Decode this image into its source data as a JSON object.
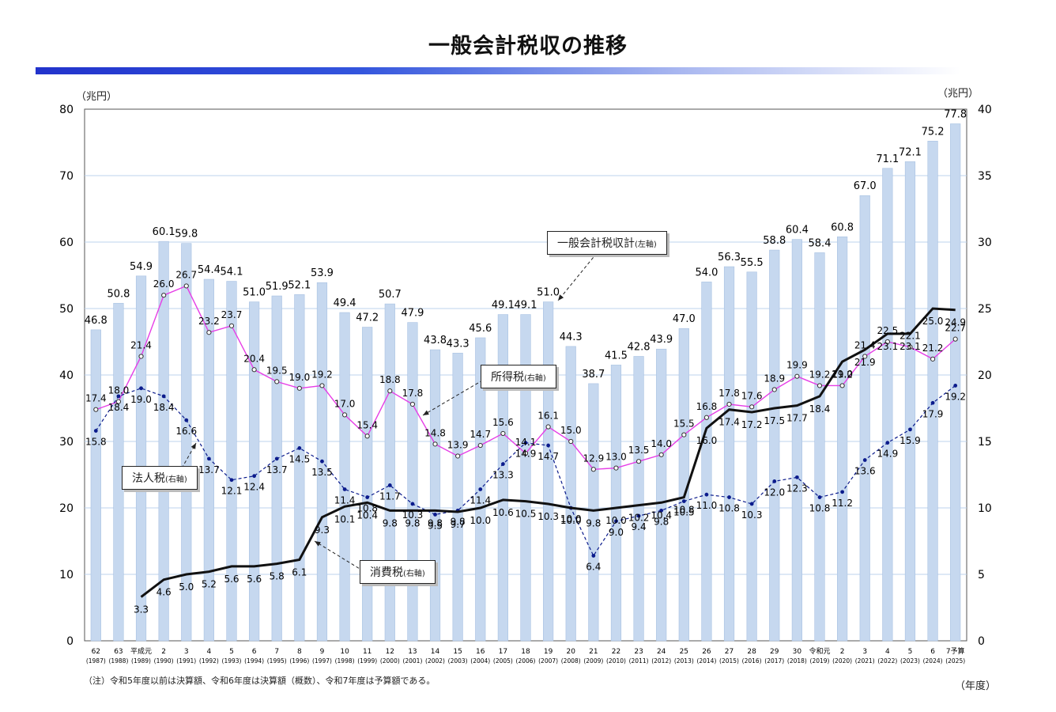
{
  "title": "一般会計税収の推移",
  "unit_left": "（兆円）",
  "unit_right": "（兆円）",
  "unit_x": "（年度）",
  "note": "（注）令和5年度以前は決算額、令和6年度は決算額（概数）、令和7年度は予算額である。",
  "callouts": {
    "general": {
      "main": "一般会計税収計",
      "sub": "(左軸)"
    },
    "income": {
      "main": "所得税",
      "sub": "(右軸)"
    },
    "corporate": {
      "main": "法人税",
      "sub": "(右軸)"
    },
    "consumption": {
      "main": "消費税",
      "sub": "(右軸)"
    }
  },
  "colors": {
    "bar": "#c6d8ef",
    "bar_edge": "#a9c2e2",
    "income": "#e63ee6",
    "corporate": "#0b1b8c",
    "consumption": "#111111",
    "title_bar": "#2233cc"
  },
  "chart_data": {
    "type": "bar",
    "categories": [
      "62",
      "63",
      "平成元",
      "2",
      "3",
      "4",
      "5",
      "6",
      "7",
      "8",
      "9",
      "10",
      "11",
      "12",
      "13",
      "14",
      "15",
      "16",
      "17",
      "18",
      "19",
      "20",
      "21",
      "22",
      "23",
      "24",
      "25",
      "26",
      "27",
      "28",
      "29",
      "30",
      "令和元",
      "2",
      "3",
      "4",
      "5",
      "6",
      "7予算"
    ],
    "category_years": [
      "(1987)",
      "(1988)",
      "(1989)",
      "(1990)",
      "(1991)",
      "(1992)",
      "(1993)",
      "(1994)",
      "(1995)",
      "(1996)",
      "(1997)",
      "(1998)",
      "(1999)",
      "(2000)",
      "(2001)",
      "(2002)",
      "(2003)",
      "(2004)",
      "(2005)",
      "(2006)",
      "(2007)",
      "(2008)",
      "(2009)",
      "(2010)",
      "(2011)",
      "(2012)",
      "(2013)",
      "(2014)",
      "(2015)",
      "(2016)",
      "(2017)",
      "(2018)",
      "(2019)",
      "(2020)",
      "(2021)",
      "(2022)",
      "(2023)",
      "(2024)",
      "(2025)"
    ],
    "y_left": {
      "min": 0,
      "max": 80,
      "ticks": [
        0,
        10,
        20,
        30,
        40,
        50,
        60,
        70,
        80
      ]
    },
    "y_right": {
      "min": 0,
      "max": 40,
      "ticks": [
        0,
        5,
        10,
        15,
        20,
        25,
        30,
        35,
        40
      ]
    },
    "grid": true,
    "series": [
      {
        "name": "一般会計税収計",
        "type": "bar",
        "axis": "left",
        "values": [
          46.8,
          50.8,
          54.9,
          60.1,
          59.8,
          54.4,
          54.1,
          51.0,
          51.9,
          52.1,
          53.9,
          49.4,
          47.2,
          50.7,
          47.9,
          43.8,
          43.3,
          45.6,
          49.1,
          49.1,
          51.0,
          44.3,
          38.7,
          41.5,
          42.8,
          43.9,
          47.0,
          54.0,
          56.3,
          55.5,
          58.8,
          60.4,
          58.4,
          60.8,
          67.0,
          71.1,
          72.1,
          75.2,
          77.8
        ]
      },
      {
        "name": "所得税",
        "type": "line",
        "axis": "right",
        "values": [
          17.4,
          18.0,
          21.4,
          26.0,
          26.7,
          23.2,
          23.7,
          20.4,
          19.5,
          19.0,
          19.2,
          17.0,
          15.4,
          18.8,
          17.8,
          14.8,
          13.9,
          14.7,
          15.6,
          14.1,
          16.1,
          15.0,
          12.9,
          13.0,
          13.5,
          14.0,
          15.5,
          16.8,
          17.8,
          17.6,
          18.9,
          19.9,
          19.2,
          19.2,
          21.4,
          22.5,
          22.1,
          21.2,
          22.7
        ]
      },
      {
        "name": "法人税",
        "type": "line",
        "axis": "right",
        "values": [
          15.8,
          18.4,
          19.0,
          18.4,
          16.6,
          13.7,
          12.1,
          12.4,
          13.7,
          14.5,
          13.5,
          11.4,
          10.8,
          11.7,
          10.3,
          9.5,
          9.8,
          11.4,
          13.3,
          14.9,
          14.7,
          10.0,
          6.4,
          9.0,
          9.4,
          9.8,
          10.5,
          11.0,
          10.8,
          10.3,
          12.0,
          12.3,
          10.8,
          11.2,
          13.6,
          14.9,
          15.9,
          17.9,
          19.2
        ]
      },
      {
        "name": "消費税",
        "type": "line",
        "axis": "right",
        "values": [
          null,
          null,
          3.3,
          4.6,
          5.0,
          5.2,
          5.6,
          5.6,
          5.8,
          6.1,
          9.3,
          10.1,
          10.4,
          9.8,
          9.8,
          9.8,
          9.7,
          10.0,
          10.6,
          10.5,
          10.3,
          10.0,
          9.8,
          10.0,
          10.2,
          10.4,
          10.8,
          16.0,
          17.4,
          17.2,
          17.5,
          17.7,
          18.4,
          21.0,
          21.9,
          23.1,
          23.1,
          25.0,
          24.9
        ]
      }
    ],
    "data_labels": {
      "bar": [
        "46.8",
        "50.8",
        "54.9",
        "60.1",
        "59.8",
        "54.4",
        "54.1",
        "51.0",
        "51.9",
        "52.1",
        "53.9",
        "49.4",
        "47.2",
        "50.7",
        "47.9",
        "43.8",
        "43.3",
        "45.6",
        "49.1",
        "49.1",
        "51.0",
        "44.3",
        "38.7",
        "41.5",
        "42.8",
        "43.9",
        "47.0",
        "54.0",
        "56.3",
        "55.5",
        "58.8",
        "60.4",
        "58.4",
        "60.8",
        "67.0",
        "71.1",
        "72.1",
        "75.2",
        "77.8"
      ],
      "income": [
        "17.4",
        "18.0",
        "21.4",
        "26.0",
        "26.7",
        "23.2",
        "23.7",
        "20.4",
        "19.5",
        "19.0",
        "19.2",
        "17.0",
        "15.4",
        "18.8",
        "17.8",
        "14.8",
        "13.9",
        "14.7",
        "15.6",
        "14.1",
        "16.1",
        "15.0",
        "12.9",
        "13.0",
        "13.5",
        "14.0",
        "15.5",
        "16.8",
        "17.8",
        "17.6",
        "18.9",
        "19.9",
        "19.2",
        "19.2",
        "21.4",
        "22.5",
        "22.1",
        "21.2",
        "22.7"
      ],
      "corporate": [
        "15.8",
        "18.4",
        "19.0",
        "18.4",
        "16.6",
        "13.7",
        "12.1",
        "12.4",
        "13.7",
        "14.5",
        "13.5",
        "11.4",
        "10.8",
        "11.7",
        "10.3",
        "9.5",
        "9.8",
        "11.4",
        "13.3",
        "14.9",
        "14.7",
        "10.0",
        "6.4",
        "9.0",
        "9.4",
        "9.8",
        "10.5",
        "11.0",
        "10.8",
        "10.3",
        "12.0",
        "12.3",
        "10.8",
        "11.2",
        "13.6",
        "14.9",
        "15.9",
        "17.9",
        "19.2"
      ],
      "consumption": [
        "",
        "",
        "3.3",
        "4.6",
        "5.0",
        "5.2",
        "5.6",
        "5.6",
        "5.8",
        "6.1",
        "9.3",
        "10.1",
        "10.4",
        "9.8",
        "9.8",
        "9.8",
        "9.7",
        "10.0",
        "10.6",
        "10.5",
        "10.3",
        "10.0",
        "9.8",
        "10.0",
        "10.2",
        "10.4",
        "10.8",
        "16.0",
        "17.4",
        "17.2",
        "17.5",
        "17.7",
        "18.4",
        "21.0",
        "21.9",
        "23.1",
        "23.1",
        "25.0",
        "24.9"
      ]
    }
  }
}
